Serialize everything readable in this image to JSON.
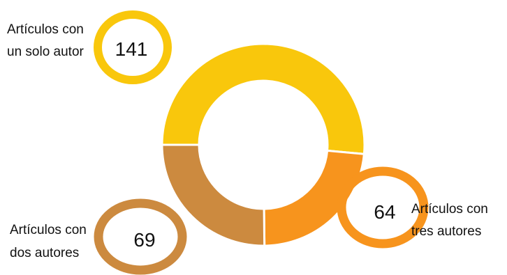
{
  "chart_data": {
    "type": "pie",
    "slices": [
      {
        "label_lines": [
          "Artículos con",
          "un solo autor"
        ],
        "value": 141,
        "value_label": "141",
        "color": "#F9C70C"
      },
      {
        "label_lines": [
          "Artículos con",
          "tres autores"
        ],
        "value": 64,
        "value_label": "64",
        "color": "#F7941D"
      },
      {
        "label_lines": [
          "Artículos con",
          "dos autores"
        ],
        "value": 69,
        "value_label": "69",
        "color": "#CC8A3F"
      }
    ]
  }
}
